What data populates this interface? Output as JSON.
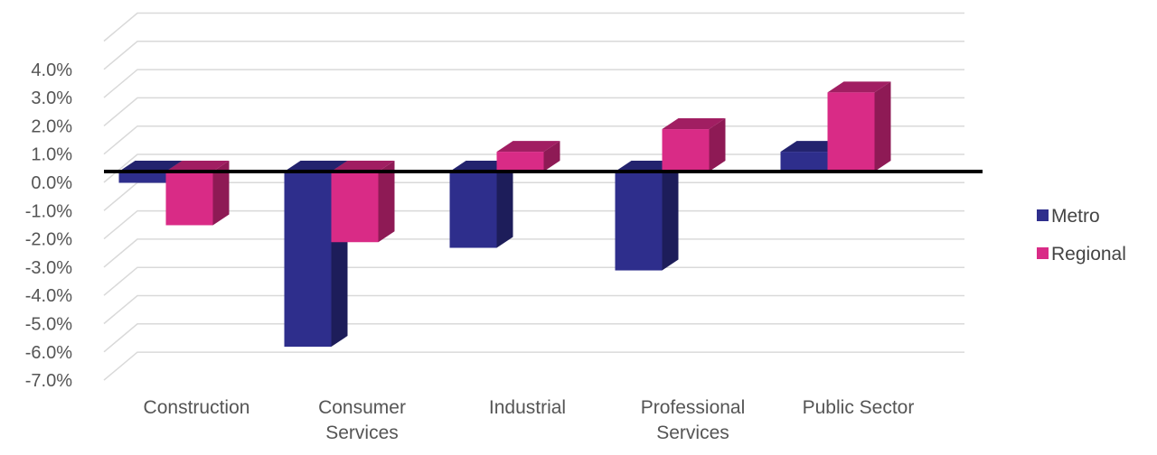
{
  "chart_data": {
    "type": "bar",
    "categories": [
      [
        "Construction"
      ],
      [
        "Consumer",
        "Services"
      ],
      [
        "Industrial"
      ],
      [
        "Professional",
        "Services"
      ],
      [
        "Public Sector"
      ]
    ],
    "series": [
      {
        "name": "Metro",
        "values": [
          -0.4,
          -6.2,
          -2.7,
          -3.5,
          0.7
        ]
      },
      {
        "name": "Regional",
        "values": [
          -1.9,
          -2.5,
          0.7,
          1.5,
          2.8
        ]
      }
    ],
    "ylim": [
      -7,
      4
    ],
    "y_ticks": [
      "4.0%",
      "3.0%",
      "2.0%",
      "1.0%",
      "0.0%",
      "-1.0%",
      "-2.0%",
      "-3.0%",
      "-4.0%",
      "-5.0%",
      "-6.0%",
      "-7.0%"
    ],
    "grid": true,
    "legend_position": "right",
    "colors": {
      "Metro": {
        "front": "#2e2e8c",
        "side": "#1d1d5a",
        "top": "#23236e"
      },
      "Regional": {
        "front": "#d92b86",
        "side": "#8e1a55",
        "top": "#a11e62"
      },
      "grid": "#d9d9d9",
      "baseline": "#000000",
      "tick_text": "#555555"
    }
  }
}
